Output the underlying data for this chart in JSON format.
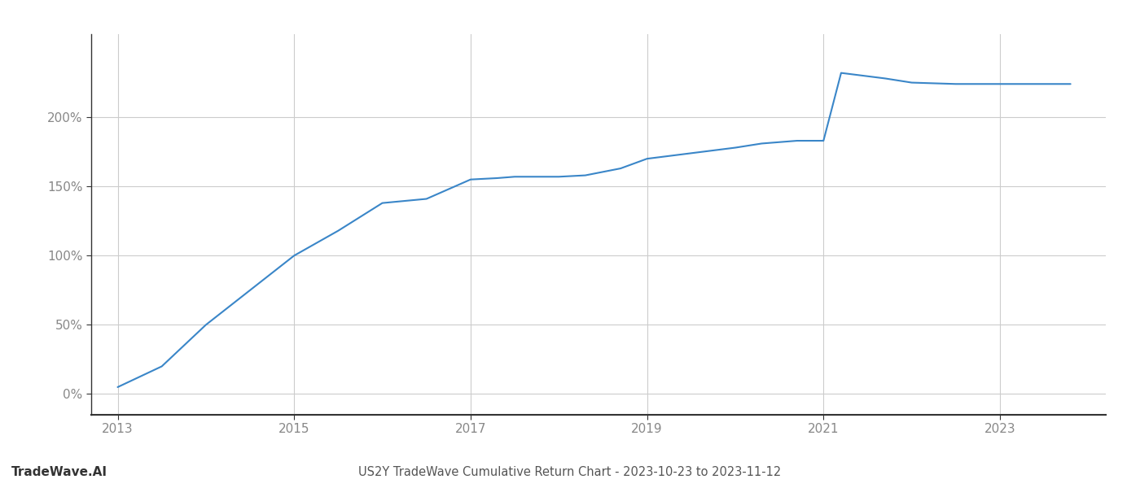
{
  "x_values": [
    2013.0,
    2013.5,
    2014.0,
    2014.5,
    2015.0,
    2015.5,
    2016.0,
    2016.5,
    2017.0,
    2017.3,
    2017.5,
    2017.8,
    2018.0,
    2018.3,
    2018.7,
    2019.0,
    2019.5,
    2020.0,
    2020.3,
    2020.7,
    2021.0,
    2021.2,
    2021.7,
    2022.0,
    2022.5,
    2023.0,
    2023.8
  ],
  "y_values": [
    5,
    20,
    50,
    75,
    100,
    118,
    138,
    141,
    155,
    156,
    157,
    157,
    157,
    158,
    163,
    170,
    174,
    178,
    181,
    183,
    183,
    232,
    228,
    225,
    224,
    224,
    224
  ],
  "line_color": "#3a86c8",
  "line_width": 1.5,
  "background_color": "#ffffff",
  "grid_color": "#cccccc",
  "title": "US2Y TradeWave Cumulative Return Chart - 2023-10-23 to 2023-11-12",
  "watermark": "TradeWave.AI",
  "xlim": [
    2012.7,
    2024.2
  ],
  "ylim": [
    -15,
    260
  ],
  "yticks": [
    0,
    50,
    100,
    150,
    200
  ],
  "xticks": [
    2013,
    2015,
    2017,
    2019,
    2021,
    2023
  ],
  "tick_label_color": "#888888",
  "spine_color": "#333333",
  "title_fontsize": 10.5,
  "watermark_fontsize": 11,
  "tick_fontsize": 11
}
